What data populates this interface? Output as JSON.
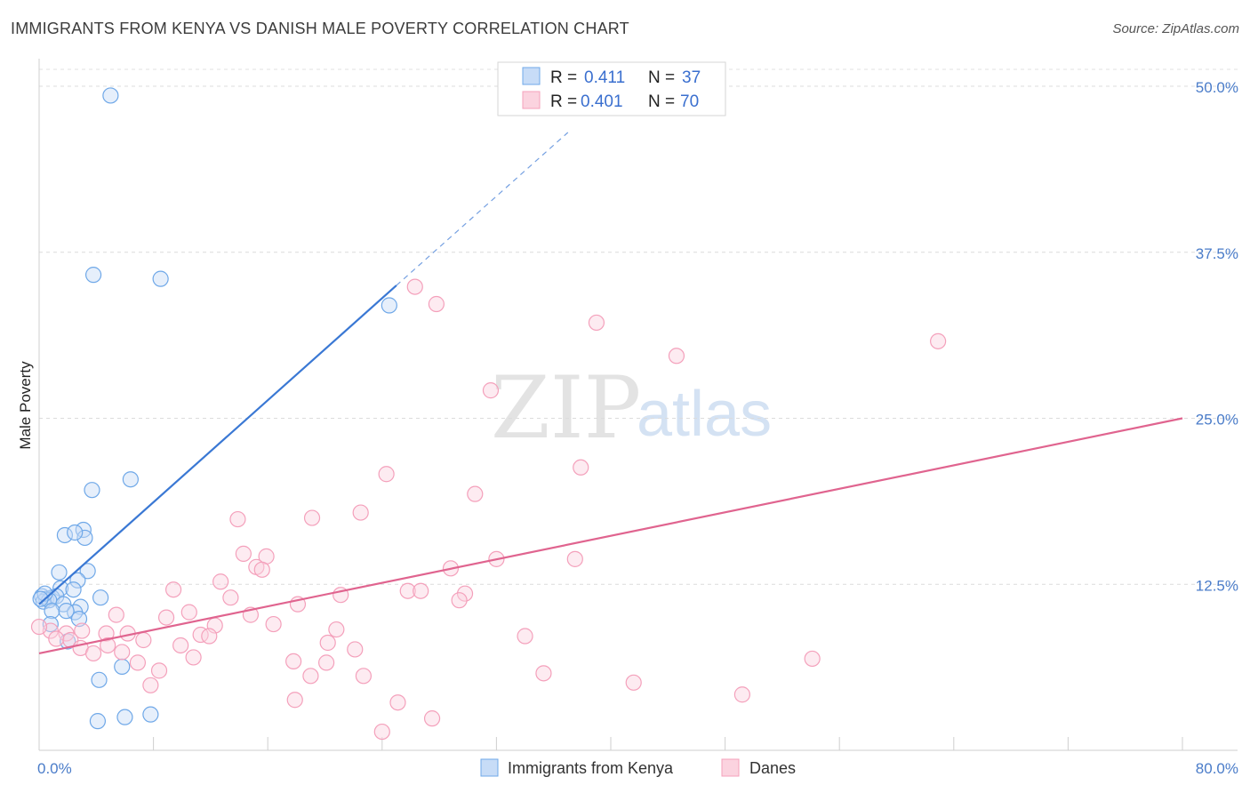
{
  "header": {
    "title": "IMMIGRANTS FROM KENYA VS DANISH MALE POVERTY CORRELATION CHART",
    "source": "Source: ZipAtlas.com"
  },
  "watermark": {
    "zip": "ZIP",
    "atlas": "atlas"
  },
  "legend": {
    "r_label": "R =",
    "n_label": "N =",
    "entries": [
      {
        "name": "Immigrants from Kenya",
        "r": "0.411",
        "n": "37",
        "color": "#6fa8e8"
      },
      {
        "name": "Danes",
        "r": "0.401",
        "n": "70",
        "color": "#f4a0bb"
      }
    ]
  },
  "chart_data": {
    "type": "scatter",
    "title": "IMMIGRANTS FROM KENYA VS DANISH MALE POVERTY CORRELATION CHART",
    "xlabel": "",
    "ylabel": "Male Poverty",
    "xlim": [
      0,
      80
    ],
    "ylim": [
      0,
      50
    ],
    "x_tick_labels": [
      "0.0%",
      "80.0%"
    ],
    "y_ticks": [
      12.5,
      25.0,
      37.5,
      50.0
    ],
    "y_tick_labels": [
      "12.5%",
      "25.0%",
      "37.5%",
      "50.0%"
    ],
    "grid": true,
    "series": [
      {
        "name": "Immigrants from Kenya",
        "color": "#6fa8e8",
        "line_color": "#3a78d4",
        "trend": {
          "x0": 0.0,
          "y0": 11.0,
          "x1": 25.0,
          "y1": 35.0,
          "dashed_to_x": 37.0
        },
        "points": [
          [
            5.0,
            49.3
          ],
          [
            3.8,
            35.8
          ],
          [
            8.5,
            35.5
          ],
          [
            24.5,
            33.5
          ],
          [
            6.4,
            20.4
          ],
          [
            3.7,
            19.6
          ],
          [
            3.1,
            16.6
          ],
          [
            3.2,
            16.0
          ],
          [
            1.8,
            16.2
          ],
          [
            2.5,
            16.4
          ],
          [
            1.4,
            13.4
          ],
          [
            3.4,
            13.5
          ],
          [
            2.7,
            12.8
          ],
          [
            1.5,
            12.2
          ],
          [
            2.4,
            12.1
          ],
          [
            0.2,
            11.6
          ],
          [
            0.5,
            11.4
          ],
          [
            0.9,
            11.5
          ],
          [
            1.2,
            11.6
          ],
          [
            0.3,
            11.2
          ],
          [
            0.7,
            11.3
          ],
          [
            1.7,
            11.0
          ],
          [
            2.9,
            10.8
          ],
          [
            4.3,
            11.5
          ],
          [
            0.9,
            10.5
          ],
          [
            2.5,
            10.4
          ],
          [
            1.9,
            10.5
          ],
          [
            2.8,
            9.9
          ],
          [
            0.8,
            9.5
          ],
          [
            2.0,
            8.2
          ],
          [
            5.8,
            6.3
          ],
          [
            4.2,
            5.3
          ],
          [
            4.1,
            2.2
          ],
          [
            6.0,
            2.5
          ],
          [
            7.8,
            2.7
          ],
          [
            0.4,
            11.8
          ],
          [
            0.1,
            11.4
          ]
        ]
      },
      {
        "name": "Danes",
        "color": "#f4a0bb",
        "line_color": "#e0648f",
        "trend": {
          "x0": 0.0,
          "y0": 7.3,
          "x1": 80.0,
          "y1": 25.0
        },
        "points": [
          [
            26.3,
            34.9
          ],
          [
            27.8,
            33.6
          ],
          [
            39.0,
            32.2
          ],
          [
            44.6,
            29.7
          ],
          [
            62.9,
            30.8
          ],
          [
            31.6,
            27.1
          ],
          [
            24.3,
            20.8
          ],
          [
            37.9,
            21.3
          ],
          [
            30.5,
            19.3
          ],
          [
            13.9,
            17.4
          ],
          [
            19.1,
            17.5
          ],
          [
            22.5,
            17.9
          ],
          [
            14.3,
            14.8
          ],
          [
            15.9,
            14.6
          ],
          [
            15.2,
            13.8
          ],
          [
            15.6,
            13.6
          ],
          [
            28.8,
            13.7
          ],
          [
            32.0,
            14.4
          ],
          [
            37.5,
            14.4
          ],
          [
            9.4,
            12.1
          ],
          [
            12.7,
            12.7
          ],
          [
            25.8,
            12.0
          ],
          [
            26.7,
            12.0
          ],
          [
            29.8,
            11.8
          ],
          [
            13.4,
            11.5
          ],
          [
            21.1,
            11.7
          ],
          [
            29.4,
            11.3
          ],
          [
            18.1,
            11.0
          ],
          [
            5.4,
            10.2
          ],
          [
            8.9,
            10.0
          ],
          [
            10.5,
            10.4
          ],
          [
            14.8,
            10.2
          ],
          [
            12.3,
            9.4
          ],
          [
            16.4,
            9.5
          ],
          [
            20.8,
            9.1
          ],
          [
            0.8,
            9.0
          ],
          [
            1.9,
            8.8
          ],
          [
            4.7,
            8.8
          ],
          [
            6.2,
            8.8
          ],
          [
            11.3,
            8.7
          ],
          [
            11.9,
            8.6
          ],
          [
            1.2,
            8.4
          ],
          [
            2.2,
            8.3
          ],
          [
            7.3,
            8.3
          ],
          [
            4.8,
            7.9
          ],
          [
            9.9,
            7.9
          ],
          [
            20.2,
            8.1
          ],
          [
            34.0,
            8.6
          ],
          [
            22.1,
            7.6
          ],
          [
            2.9,
            7.7
          ],
          [
            3.8,
            7.3
          ],
          [
            5.8,
            7.4
          ],
          [
            10.8,
            7.0
          ],
          [
            6.9,
            6.6
          ],
          [
            17.8,
            6.7
          ],
          [
            20.1,
            6.6
          ],
          [
            8.4,
            6.0
          ],
          [
            19.0,
            5.6
          ],
          [
            22.7,
            5.6
          ],
          [
            35.3,
            5.8
          ],
          [
            54.1,
            6.9
          ],
          [
            7.8,
            4.9
          ],
          [
            41.6,
            5.1
          ],
          [
            49.2,
            4.2
          ],
          [
            17.9,
            3.8
          ],
          [
            25.1,
            3.6
          ],
          [
            27.5,
            2.4
          ],
          [
            24.0,
            1.4
          ],
          [
            0.0,
            9.3
          ],
          [
            3.0,
            9.0
          ]
        ]
      }
    ]
  }
}
